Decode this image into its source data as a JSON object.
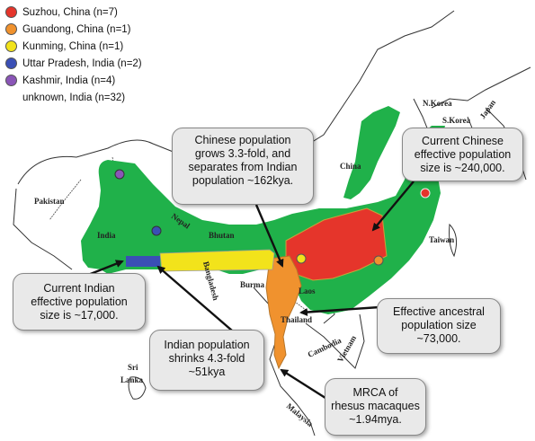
{
  "legend": [
    {
      "label": "Suzhou, China (n=7)",
      "color": "#e5352b"
    },
    {
      "label": "Guandong, China (n=1)",
      "color": "#f0922e"
    },
    {
      "label": "Kunming, China (n=1)",
      "color": "#f2e31b"
    },
    {
      "label": "Uttar Pradesh, India (n=2)",
      "color": "#3a4fb5"
    },
    {
      "label": "Kashmir, India (n=4)",
      "color": "#8a55b7"
    },
    {
      "label": "unknown, India (n=32)",
      "color": ""
    }
  ],
  "colors": {
    "range_green": "#20b14a",
    "china_red": "#e5352b",
    "yunnan_orange": "#f0922e",
    "corridor_yellow": "#f2e31b",
    "india_blue": "#3a4fb5",
    "kashmir_purple": "#8a55b7",
    "callout_bg": "#e9e9e9"
  },
  "countries": {
    "pakistan": "Pakistan",
    "india": "India",
    "nepal": "Nepal",
    "bhutan": "Bhutan",
    "bangladesh": "Bangladesh",
    "burma": "Burma",
    "laos": "Laos",
    "thailand": "Thailand",
    "cambodia": "Cambodia",
    "vietnam": "Vietnam",
    "malaysia": "Malaysia",
    "sri_lanka": "Sri Lanka",
    "china": "China",
    "taiwan": "Taiwan",
    "n_korea": "N.Korea",
    "s_korea": "S.Korea",
    "japan": "Japan"
  },
  "callouts": {
    "chinese_split": "Chinese population\ngrows 3.3-fold, and\nseparates from Indian\npopulation ~162kya.",
    "current_chinese": "Current Chinese\neffective population\nsize is ~240,000.",
    "current_indian": "Current Indian\neffective population\nsize is ~17,000.",
    "ancestral": "Effective ancestral\npopulation size\n~73,000.",
    "indian_shrink": "Indian population\nshrinks 4.3-fold\n~51kya",
    "mrca": "MRCA of\nrhesus macaques\n~1.94mya."
  }
}
